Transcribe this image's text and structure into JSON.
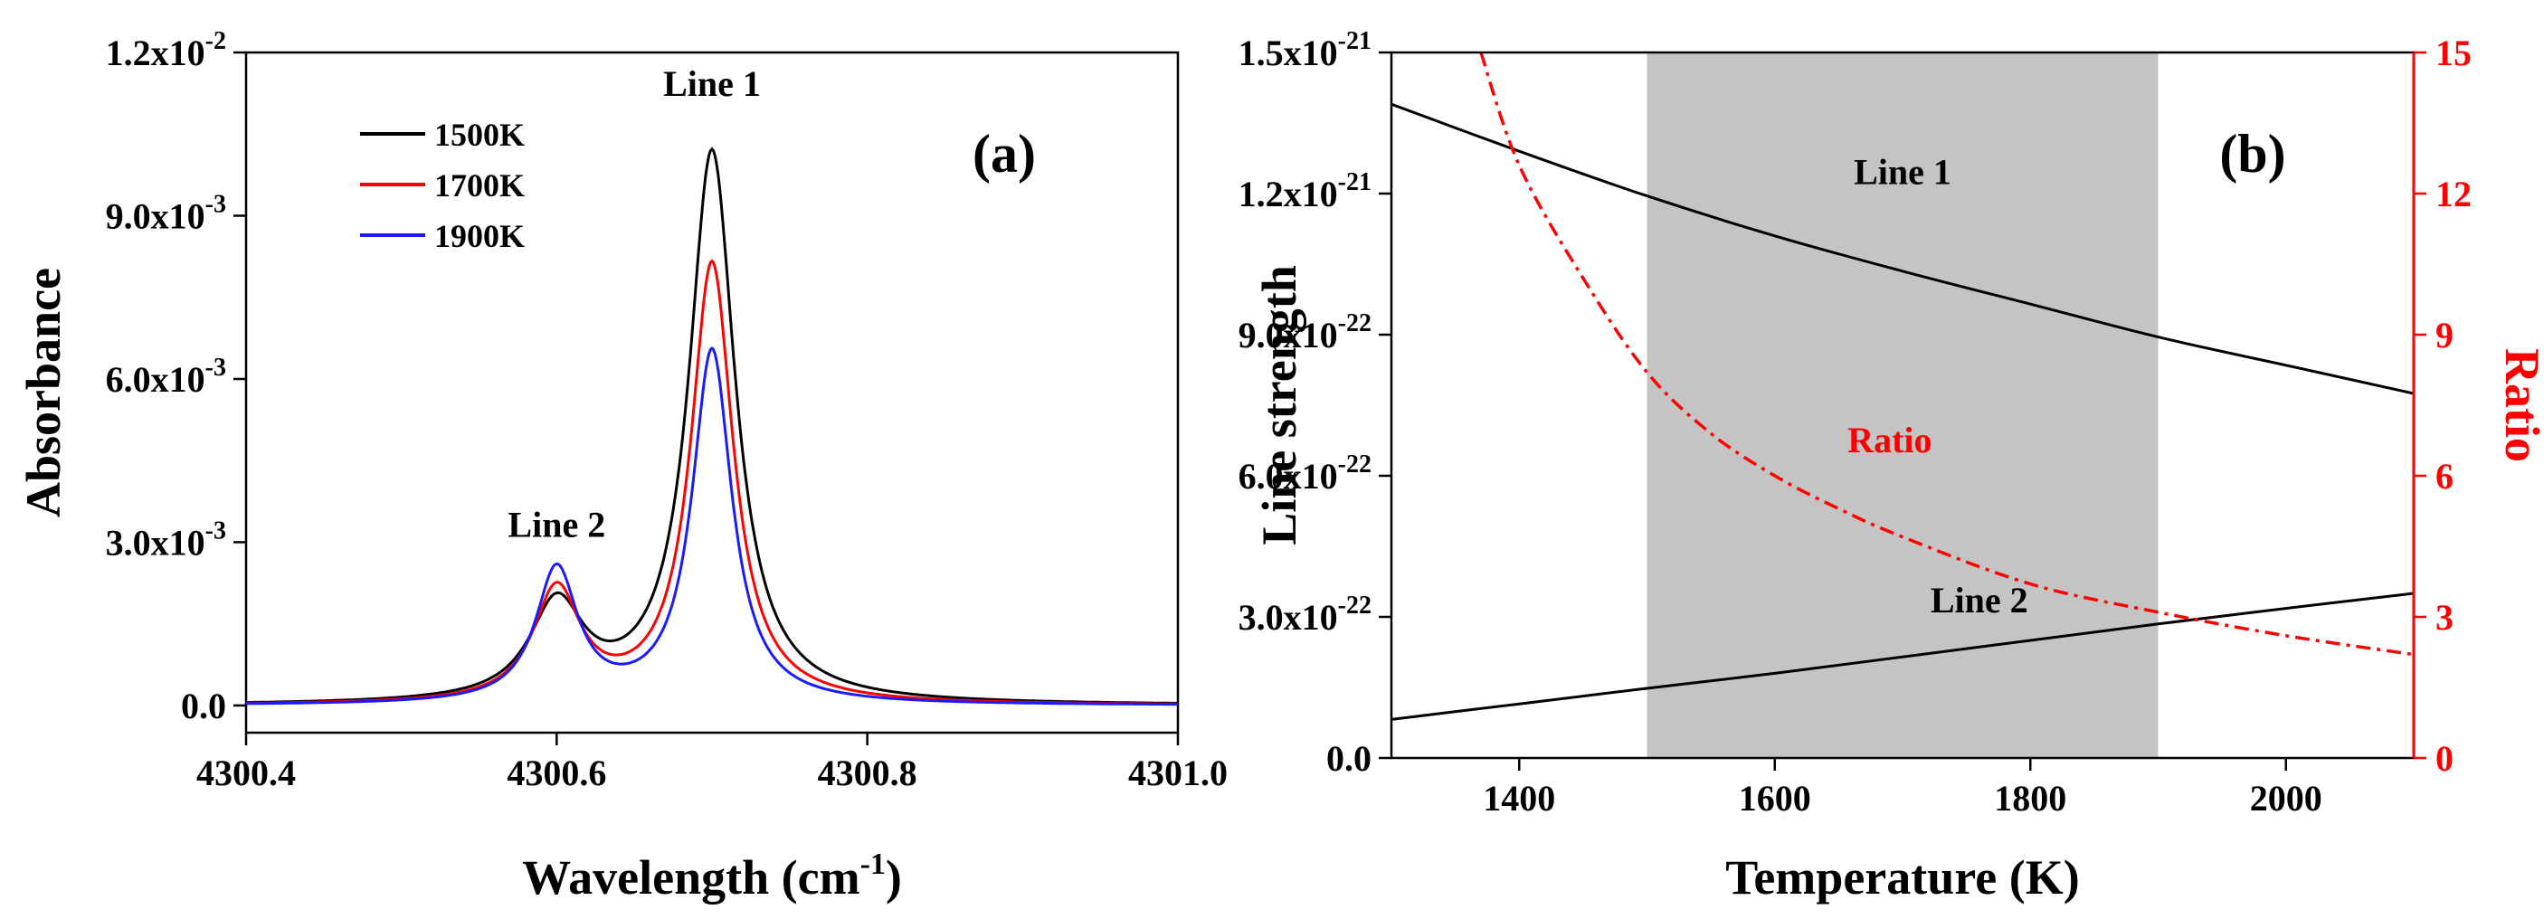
{
  "chart_data": [
    {
      "panel_label": "(a)",
      "type": "line",
      "xlabel": "Wavelength (cm",
      "xlabel_sup": "-1",
      "xlabel_end": ")",
      "ylabel": "Absorbance",
      "xlim": [
        4300.4,
        4301.0
      ],
      "ylim": [
        -0.0005,
        0.012
      ],
      "xticks": [
        {
          "value": 4300.4,
          "label": "4300.4"
        },
        {
          "value": 4300.6,
          "label": "4300.6"
        },
        {
          "value": 4300.8,
          "label": "4300.8"
        },
        {
          "value": 4301.0,
          "label": "4301.0"
        }
      ],
      "yticks": [
        {
          "value": 0.0,
          "mant": "0.0",
          "exp": ""
        },
        {
          "value": 0.003,
          "mant": "3.0x10",
          "exp": "-3"
        },
        {
          "value": 0.006,
          "mant": "6.0x10",
          "exp": "-3"
        },
        {
          "value": 0.009,
          "mant": "9.0x10",
          "exp": "-3"
        },
        {
          "value": 0.012,
          "mant": "1.2x10",
          "exp": "-2"
        }
      ],
      "line_centers": {
        "line1": 4300.7,
        "line2": 4300.6
      },
      "series": [
        {
          "name": "1500K",
          "color": "#000000",
          "peak1": 0.01015,
          "peak2": 0.00175,
          "width1": 0.018,
          "width2": 0.021
        },
        {
          "name": "1700K",
          "color": "#ff0000",
          "peak1": 0.0081,
          "peak2": 0.00205,
          "width1": 0.0165,
          "width2": 0.0185
        },
        {
          "name": "1900K",
          "color": "#1a1aff",
          "peak1": 0.0065,
          "peak2": 0.00245,
          "width1": 0.0155,
          "width2": 0.0165
        }
      ],
      "annotations": [
        {
          "text": "Line 1",
          "x": 4300.7,
          "y": 0.0112
        },
        {
          "text": "Line 2",
          "x": 4300.6,
          "y": 0.0031
        }
      ]
    },
    {
      "panel_label": "(b)",
      "type": "line",
      "xlabel": "Temperature (K)",
      "ylabel_left": "Line strength",
      "ylabel_right": "Ratio",
      "xlim": [
        1300,
        2100
      ],
      "ylim_left": [
        0,
        1.5e-21
      ],
      "ylim_right": [
        0,
        15
      ],
      "shaded_region": [
        1500,
        1900
      ],
      "xticks": [
        {
          "value": 1400,
          "label": "1400"
        },
        {
          "value": 1600,
          "label": "1600"
        },
        {
          "value": 1800,
          "label": "1800"
        },
        {
          "value": 2000,
          "label": "2000"
        }
      ],
      "yticks_left": [
        {
          "value": 0,
          "mant": "0.0",
          "exp": ""
        },
        {
          "value": 3e-22,
          "mant": "3.0x10",
          "exp": "-22"
        },
        {
          "value": 6e-22,
          "mant": "6.0x10",
          "exp": "-22"
        },
        {
          "value": 9e-22,
          "mant": "9.0x10",
          "exp": "-22"
        },
        {
          "value": 1.2e-21,
          "mant": "1.2x10",
          "exp": "-21"
        },
        {
          "value": 1.5e-21,
          "mant": "1.5x10",
          "exp": "-21"
        }
      ],
      "yticks_right": [
        {
          "value": 0,
          "label": "0"
        },
        {
          "value": 3,
          "label": "3"
        },
        {
          "value": 6,
          "label": "6"
        },
        {
          "value": 9,
          "label": "9"
        },
        {
          "value": 12,
          "label": "12"
        },
        {
          "value": 15,
          "label": "15"
        }
      ],
      "series": [
        {
          "name": "Line 1",
          "axis": "left",
          "color": "#000000",
          "style": "solid",
          "x": [
            1300,
            1400,
            1500,
            1600,
            1700,
            1800,
            1900,
            2000,
            2100
          ],
          "y": [
            1.39e-21,
            1.29e-21,
            1.195e-21,
            1.11e-21,
            1.035e-21,
            9.65e-22,
            8.95e-22,
            8.35e-22,
            7.75e-22
          ]
        },
        {
          "name": "Line 2",
          "axis": "left",
          "color": "#000000",
          "style": "solid",
          "x": [
            1300,
            1400,
            1500,
            1600,
            1700,
            1800,
            1900,
            2000,
            2100
          ],
          "y": [
            8.2e-23,
            1.15e-22,
            1.48e-22,
            1.8e-22,
            2.15e-22,
            2.5e-22,
            2.85e-22,
            3.18e-22,
            3.5e-22
          ]
        },
        {
          "name": "Ratio",
          "axis": "right",
          "color": "#ff0000",
          "style": "dashdot",
          "x": [
            1370,
            1400,
            1450,
            1500,
            1550,
            1600,
            1650,
            1700,
            1800,
            1900,
            2000,
            2100
          ],
          "y": [
            15,
            12.6,
            10.2,
            8.2,
            6.9,
            6.0,
            5.3,
            4.7,
            3.7,
            3.1,
            2.6,
            2.2
          ]
        }
      ],
      "annotations": [
        {
          "text": "Line 1",
          "x": 1700,
          "y": 1.22e-21,
          "color": "#000000"
        },
        {
          "text": "Line 2",
          "x": 1760,
          "y": 3.1e-22,
          "color": "#000000"
        },
        {
          "text": "Ratio",
          "x": 1690,
          "y": 6.5e-22,
          "color": "#ff0000"
        }
      ]
    }
  ]
}
